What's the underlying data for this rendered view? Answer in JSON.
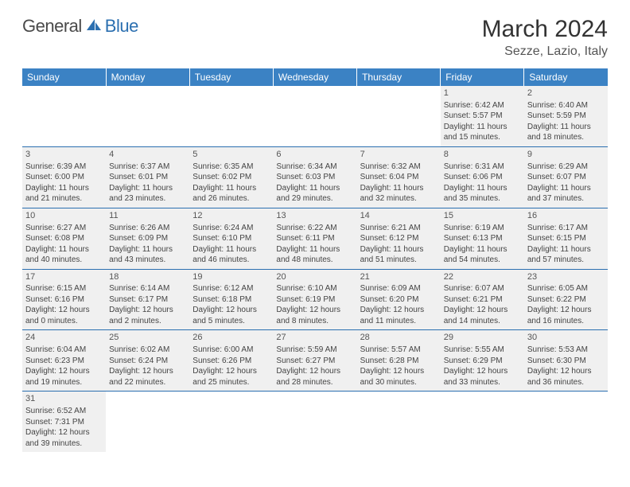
{
  "logo": {
    "part1": "General",
    "part2": "Blue"
  },
  "title": "March 2024",
  "location": "Sezze, Lazio, Italy",
  "colors": {
    "header_bg": "#3b82c4",
    "header_text": "#ffffff",
    "row_bg": "#f0f0f0",
    "row_border": "#2b6fb0",
    "logo_blue": "#2b6fb0",
    "logo_gray": "#4a4a4a"
  },
  "weekdays": [
    "Sunday",
    "Monday",
    "Tuesday",
    "Wednesday",
    "Thursday",
    "Friday",
    "Saturday"
  ],
  "weeks": [
    [
      null,
      null,
      null,
      null,
      null,
      {
        "n": "1",
        "sr": "Sunrise: 6:42 AM",
        "ss": "Sunset: 5:57 PM",
        "d1": "Daylight: 11 hours",
        "d2": "and 15 minutes."
      },
      {
        "n": "2",
        "sr": "Sunrise: 6:40 AM",
        "ss": "Sunset: 5:59 PM",
        "d1": "Daylight: 11 hours",
        "d2": "and 18 minutes."
      }
    ],
    [
      {
        "n": "3",
        "sr": "Sunrise: 6:39 AM",
        "ss": "Sunset: 6:00 PM",
        "d1": "Daylight: 11 hours",
        "d2": "and 21 minutes."
      },
      {
        "n": "4",
        "sr": "Sunrise: 6:37 AM",
        "ss": "Sunset: 6:01 PM",
        "d1": "Daylight: 11 hours",
        "d2": "and 23 minutes."
      },
      {
        "n": "5",
        "sr": "Sunrise: 6:35 AM",
        "ss": "Sunset: 6:02 PM",
        "d1": "Daylight: 11 hours",
        "d2": "and 26 minutes."
      },
      {
        "n": "6",
        "sr": "Sunrise: 6:34 AM",
        "ss": "Sunset: 6:03 PM",
        "d1": "Daylight: 11 hours",
        "d2": "and 29 minutes."
      },
      {
        "n": "7",
        "sr": "Sunrise: 6:32 AM",
        "ss": "Sunset: 6:04 PM",
        "d1": "Daylight: 11 hours",
        "d2": "and 32 minutes."
      },
      {
        "n": "8",
        "sr": "Sunrise: 6:31 AM",
        "ss": "Sunset: 6:06 PM",
        "d1": "Daylight: 11 hours",
        "d2": "and 35 minutes."
      },
      {
        "n": "9",
        "sr": "Sunrise: 6:29 AM",
        "ss": "Sunset: 6:07 PM",
        "d1": "Daylight: 11 hours",
        "d2": "and 37 minutes."
      }
    ],
    [
      {
        "n": "10",
        "sr": "Sunrise: 6:27 AM",
        "ss": "Sunset: 6:08 PM",
        "d1": "Daylight: 11 hours",
        "d2": "and 40 minutes."
      },
      {
        "n": "11",
        "sr": "Sunrise: 6:26 AM",
        "ss": "Sunset: 6:09 PM",
        "d1": "Daylight: 11 hours",
        "d2": "and 43 minutes."
      },
      {
        "n": "12",
        "sr": "Sunrise: 6:24 AM",
        "ss": "Sunset: 6:10 PM",
        "d1": "Daylight: 11 hours",
        "d2": "and 46 minutes."
      },
      {
        "n": "13",
        "sr": "Sunrise: 6:22 AM",
        "ss": "Sunset: 6:11 PM",
        "d1": "Daylight: 11 hours",
        "d2": "and 48 minutes."
      },
      {
        "n": "14",
        "sr": "Sunrise: 6:21 AM",
        "ss": "Sunset: 6:12 PM",
        "d1": "Daylight: 11 hours",
        "d2": "and 51 minutes."
      },
      {
        "n": "15",
        "sr": "Sunrise: 6:19 AM",
        "ss": "Sunset: 6:13 PM",
        "d1": "Daylight: 11 hours",
        "d2": "and 54 minutes."
      },
      {
        "n": "16",
        "sr": "Sunrise: 6:17 AM",
        "ss": "Sunset: 6:15 PM",
        "d1": "Daylight: 11 hours",
        "d2": "and 57 minutes."
      }
    ],
    [
      {
        "n": "17",
        "sr": "Sunrise: 6:15 AM",
        "ss": "Sunset: 6:16 PM",
        "d1": "Daylight: 12 hours",
        "d2": "and 0 minutes."
      },
      {
        "n": "18",
        "sr": "Sunrise: 6:14 AM",
        "ss": "Sunset: 6:17 PM",
        "d1": "Daylight: 12 hours",
        "d2": "and 2 minutes."
      },
      {
        "n": "19",
        "sr": "Sunrise: 6:12 AM",
        "ss": "Sunset: 6:18 PM",
        "d1": "Daylight: 12 hours",
        "d2": "and 5 minutes."
      },
      {
        "n": "20",
        "sr": "Sunrise: 6:10 AM",
        "ss": "Sunset: 6:19 PM",
        "d1": "Daylight: 12 hours",
        "d2": "and 8 minutes."
      },
      {
        "n": "21",
        "sr": "Sunrise: 6:09 AM",
        "ss": "Sunset: 6:20 PM",
        "d1": "Daylight: 12 hours",
        "d2": "and 11 minutes."
      },
      {
        "n": "22",
        "sr": "Sunrise: 6:07 AM",
        "ss": "Sunset: 6:21 PM",
        "d1": "Daylight: 12 hours",
        "d2": "and 14 minutes."
      },
      {
        "n": "23",
        "sr": "Sunrise: 6:05 AM",
        "ss": "Sunset: 6:22 PM",
        "d1": "Daylight: 12 hours",
        "d2": "and 16 minutes."
      }
    ],
    [
      {
        "n": "24",
        "sr": "Sunrise: 6:04 AM",
        "ss": "Sunset: 6:23 PM",
        "d1": "Daylight: 12 hours",
        "d2": "and 19 minutes."
      },
      {
        "n": "25",
        "sr": "Sunrise: 6:02 AM",
        "ss": "Sunset: 6:24 PM",
        "d1": "Daylight: 12 hours",
        "d2": "and 22 minutes."
      },
      {
        "n": "26",
        "sr": "Sunrise: 6:00 AM",
        "ss": "Sunset: 6:26 PM",
        "d1": "Daylight: 12 hours",
        "d2": "and 25 minutes."
      },
      {
        "n": "27",
        "sr": "Sunrise: 5:59 AM",
        "ss": "Sunset: 6:27 PM",
        "d1": "Daylight: 12 hours",
        "d2": "and 28 minutes."
      },
      {
        "n": "28",
        "sr": "Sunrise: 5:57 AM",
        "ss": "Sunset: 6:28 PM",
        "d1": "Daylight: 12 hours",
        "d2": "and 30 minutes."
      },
      {
        "n": "29",
        "sr": "Sunrise: 5:55 AM",
        "ss": "Sunset: 6:29 PM",
        "d1": "Daylight: 12 hours",
        "d2": "and 33 minutes."
      },
      {
        "n": "30",
        "sr": "Sunrise: 5:53 AM",
        "ss": "Sunset: 6:30 PM",
        "d1": "Daylight: 12 hours",
        "d2": "and 36 minutes."
      }
    ],
    [
      {
        "n": "31",
        "sr": "Sunrise: 6:52 AM",
        "ss": "Sunset: 7:31 PM",
        "d1": "Daylight: 12 hours",
        "d2": "and 39 minutes."
      },
      null,
      null,
      null,
      null,
      null,
      null
    ]
  ]
}
